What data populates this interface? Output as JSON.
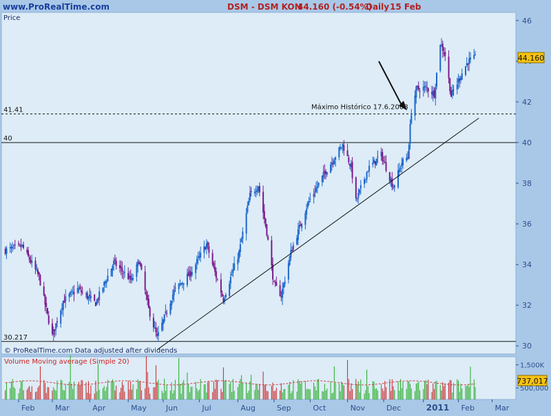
{
  "header": {
    "site": "www.ProRealTime.com",
    "instrument": "DSM - DSM KON",
    "last": "44.160 (-0.54%)",
    "period": "Daily",
    "date": "15 Feb"
  },
  "colors": {
    "background": "#a9c8e8",
    "plot_bg": "#ddecf7",
    "bull": "#1a66cc",
    "bear": "#7a1a8c",
    "header_text": "#b22222",
    "axis_text": "#2b4f8a",
    "volume_up": "#22aa22",
    "volume_down": "#cc2222",
    "volume_ma": "#cc4444"
  },
  "chart_data": [
    {
      "type": "candlestick",
      "title": "",
      "ylabel": "Price",
      "ylim": [
        29.6,
        46.4
      ],
      "yticks": [
        30,
        32,
        34,
        36,
        38,
        40,
        42,
        44,
        46
      ],
      "x_month_labels": [
        "Feb",
        "Mar",
        "Apr",
        "May",
        "Jun",
        "Jul",
        "Aug",
        "Sep",
        "Oct",
        "Nov",
        "Dec",
        "2011",
        "Feb",
        "Mar"
      ],
      "last_price_label": "44.160",
      "horizontal_lines": [
        {
          "label": "41.41",
          "value": 41.41,
          "style": "dashed"
        },
        {
          "label": "40",
          "value": 40.0,
          "style": "solid"
        },
        {
          "label": "30.217",
          "value": 30.217,
          "style": "solid"
        }
      ],
      "annotation": {
        "text": "Máximo Histórico 17.6.2008",
        "points_to": 41.41
      },
      "trendline": {
        "start": {
          "date": "2010-05-27",
          "value": 30.217
        },
        "end": {
          "date": "2011-02-18",
          "value": 41.2
        }
      },
      "footer_note": "© ProRealTime.com  Data adjusted after dividends",
      "anchors": [
        {
          "date": "2010-01-21",
          "value": 34.7
        },
        {
          "date": "2010-02-04",
          "value": 34.9
        },
        {
          "date": "2010-02-18",
          "value": 33.4
        },
        {
          "date": "2010-02-25",
          "value": 31.5
        },
        {
          "date": "2010-03-01",
          "value": 30.5
        },
        {
          "date": "2010-03-10",
          "value": 32.2
        },
        {
          "date": "2010-03-22",
          "value": 32.8
        },
        {
          "date": "2010-04-06",
          "value": 32.1
        },
        {
          "date": "2010-04-21",
          "value": 34.1
        },
        {
          "date": "2010-05-06",
          "value": 33.2
        },
        {
          "date": "2010-05-12",
          "value": 34.2
        },
        {
          "date": "2010-05-20",
          "value": 31.8
        },
        {
          "date": "2010-05-27",
          "value": 30.4
        },
        {
          "date": "2010-06-10",
          "value": 32.7
        },
        {
          "date": "2010-06-24",
          "value": 33.6
        },
        {
          "date": "2010-07-07",
          "value": 35.0
        },
        {
          "date": "2010-07-15",
          "value": 33.4
        },
        {
          "date": "2010-07-21",
          "value": 32.3
        },
        {
          "date": "2010-08-03",
          "value": 34.6
        },
        {
          "date": "2010-08-12",
          "value": 37.4
        },
        {
          "date": "2010-08-19",
          "value": 37.9
        },
        {
          "date": "2010-08-26",
          "value": 35.6
        },
        {
          "date": "2010-09-01",
          "value": 33.0
        },
        {
          "date": "2010-09-07",
          "value": 32.5
        },
        {
          "date": "2010-09-15",
          "value": 34.6
        },
        {
          "date": "2010-09-29",
          "value": 37.0
        },
        {
          "date": "2010-10-13",
          "value": 38.5
        },
        {
          "date": "2010-10-28",
          "value": 39.9
        },
        {
          "date": "2010-11-04",
          "value": 38.8
        },
        {
          "date": "2010-11-08",
          "value": 37.1
        },
        {
          "date": "2010-11-18",
          "value": 38.7
        },
        {
          "date": "2010-11-29",
          "value": 39.4
        },
        {
          "date": "2010-12-09",
          "value": 37.8
        },
        {
          "date": "2010-12-16",
          "value": 39.0
        },
        {
          "date": "2010-12-21",
          "value": 39.3
        },
        {
          "date": "2010-12-24",
          "value": 41.5
        },
        {
          "date": "2010-12-28",
          "value": 42.6
        },
        {
          "date": "2011-01-05",
          "value": 42.7
        },
        {
          "date": "2011-01-12",
          "value": 42.4
        },
        {
          "date": "2011-01-17",
          "value": 44.9
        },
        {
          "date": "2011-01-21",
          "value": 44.3
        },
        {
          "date": "2011-01-26",
          "value": 42.3
        },
        {
          "date": "2011-02-03",
          "value": 43.3
        },
        {
          "date": "2011-02-09",
          "value": 44.0
        },
        {
          "date": "2011-02-15",
          "value": 44.16
        }
      ]
    },
    {
      "type": "bar",
      "title": "Volume Moving average (Simple 20)",
      "yticks": [
        {
          "label": "1,500K",
          "value": 1500
        },
        {
          "label": "500,000",
          "value": 500
        }
      ],
      "ylim": [
        0,
        1850
      ],
      "units": "thousands",
      "last_volume_label": "737,017",
      "ma_level": 720
    }
  ]
}
